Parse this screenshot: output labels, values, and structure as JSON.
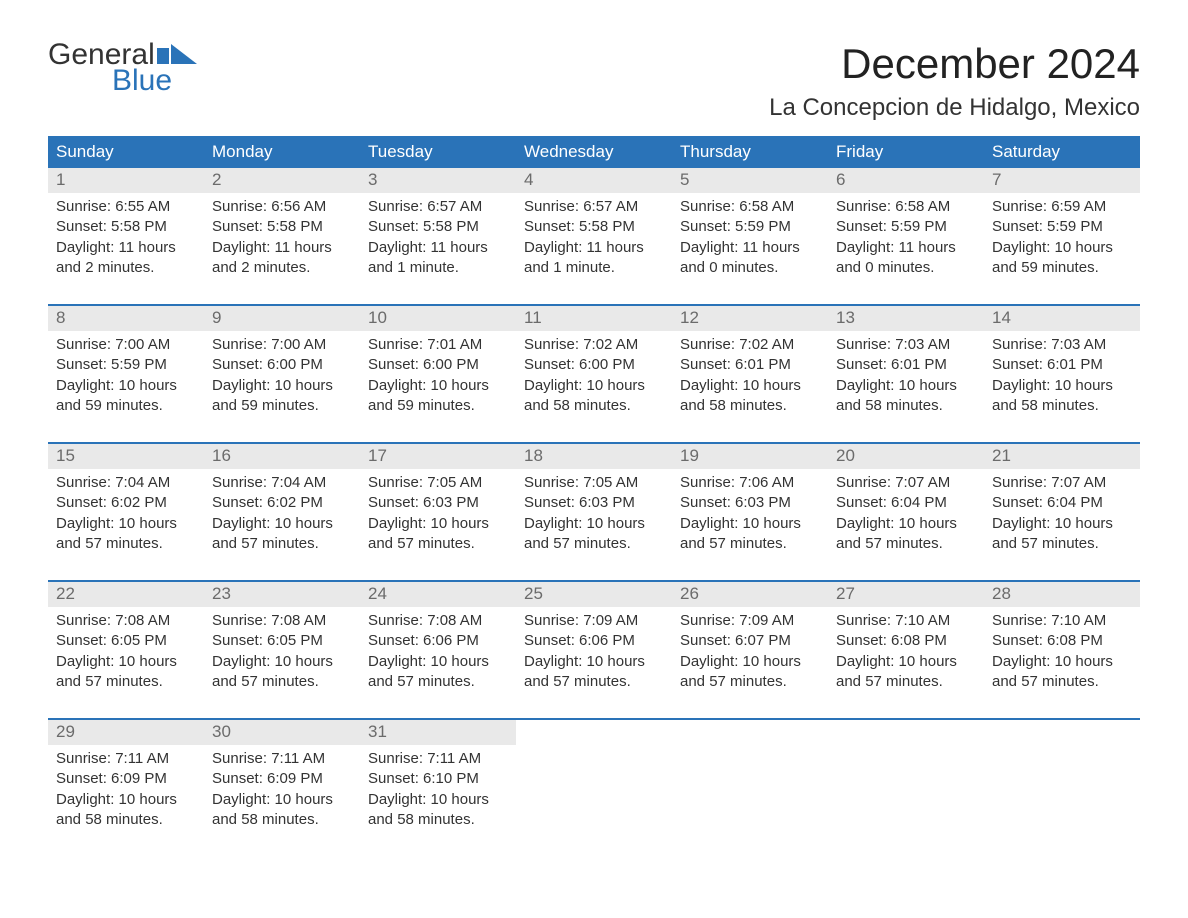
{
  "brand": {
    "word1": "General",
    "word2": "Blue",
    "word1_color": "#333333",
    "word2_color": "#2a73b8",
    "flag_color": "#2a73b8"
  },
  "title": "December 2024",
  "location": "La Concepcion de Hidalgo, Mexico",
  "colors": {
    "header_bg": "#2a73b8",
    "header_fg": "#ffffff",
    "daynum_bg": "#e9e9e9",
    "daynum_fg": "#6b6b6b",
    "week_border": "#2a73b8",
    "body_text": "#333333",
    "page_bg": "#ffffff"
  },
  "typography": {
    "title_fontsize": 42,
    "location_fontsize": 24,
    "weekday_fontsize": 17,
    "daynum_fontsize": 17,
    "body_fontsize": 15
  },
  "weekdays": [
    "Sunday",
    "Monday",
    "Tuesday",
    "Wednesday",
    "Thursday",
    "Friday",
    "Saturday"
  ],
  "weeks": [
    [
      {
        "n": "1",
        "sunrise": "Sunrise: 6:55 AM",
        "sunset": "Sunset: 5:58 PM",
        "dl1": "Daylight: 11 hours",
        "dl2": "and 2 minutes."
      },
      {
        "n": "2",
        "sunrise": "Sunrise: 6:56 AM",
        "sunset": "Sunset: 5:58 PM",
        "dl1": "Daylight: 11 hours",
        "dl2": "and 2 minutes."
      },
      {
        "n": "3",
        "sunrise": "Sunrise: 6:57 AM",
        "sunset": "Sunset: 5:58 PM",
        "dl1": "Daylight: 11 hours",
        "dl2": "and 1 minute."
      },
      {
        "n": "4",
        "sunrise": "Sunrise: 6:57 AM",
        "sunset": "Sunset: 5:58 PM",
        "dl1": "Daylight: 11 hours",
        "dl2": "and 1 minute."
      },
      {
        "n": "5",
        "sunrise": "Sunrise: 6:58 AM",
        "sunset": "Sunset: 5:59 PM",
        "dl1": "Daylight: 11 hours",
        "dl2": "and 0 minutes."
      },
      {
        "n": "6",
        "sunrise": "Sunrise: 6:58 AM",
        "sunset": "Sunset: 5:59 PM",
        "dl1": "Daylight: 11 hours",
        "dl2": "and 0 minutes."
      },
      {
        "n": "7",
        "sunrise": "Sunrise: 6:59 AM",
        "sunset": "Sunset: 5:59 PM",
        "dl1": "Daylight: 10 hours",
        "dl2": "and 59 minutes."
      }
    ],
    [
      {
        "n": "8",
        "sunrise": "Sunrise: 7:00 AM",
        "sunset": "Sunset: 5:59 PM",
        "dl1": "Daylight: 10 hours",
        "dl2": "and 59 minutes."
      },
      {
        "n": "9",
        "sunrise": "Sunrise: 7:00 AM",
        "sunset": "Sunset: 6:00 PM",
        "dl1": "Daylight: 10 hours",
        "dl2": "and 59 minutes."
      },
      {
        "n": "10",
        "sunrise": "Sunrise: 7:01 AM",
        "sunset": "Sunset: 6:00 PM",
        "dl1": "Daylight: 10 hours",
        "dl2": "and 59 minutes."
      },
      {
        "n": "11",
        "sunrise": "Sunrise: 7:02 AM",
        "sunset": "Sunset: 6:00 PM",
        "dl1": "Daylight: 10 hours",
        "dl2": "and 58 minutes."
      },
      {
        "n": "12",
        "sunrise": "Sunrise: 7:02 AM",
        "sunset": "Sunset: 6:01 PM",
        "dl1": "Daylight: 10 hours",
        "dl2": "and 58 minutes."
      },
      {
        "n": "13",
        "sunrise": "Sunrise: 7:03 AM",
        "sunset": "Sunset: 6:01 PM",
        "dl1": "Daylight: 10 hours",
        "dl2": "and 58 minutes."
      },
      {
        "n": "14",
        "sunrise": "Sunrise: 7:03 AM",
        "sunset": "Sunset: 6:01 PM",
        "dl1": "Daylight: 10 hours",
        "dl2": "and 58 minutes."
      }
    ],
    [
      {
        "n": "15",
        "sunrise": "Sunrise: 7:04 AM",
        "sunset": "Sunset: 6:02 PM",
        "dl1": "Daylight: 10 hours",
        "dl2": "and 57 minutes."
      },
      {
        "n": "16",
        "sunrise": "Sunrise: 7:04 AM",
        "sunset": "Sunset: 6:02 PM",
        "dl1": "Daylight: 10 hours",
        "dl2": "and 57 minutes."
      },
      {
        "n": "17",
        "sunrise": "Sunrise: 7:05 AM",
        "sunset": "Sunset: 6:03 PM",
        "dl1": "Daylight: 10 hours",
        "dl2": "and 57 minutes."
      },
      {
        "n": "18",
        "sunrise": "Sunrise: 7:05 AM",
        "sunset": "Sunset: 6:03 PM",
        "dl1": "Daylight: 10 hours",
        "dl2": "and 57 minutes."
      },
      {
        "n": "19",
        "sunrise": "Sunrise: 7:06 AM",
        "sunset": "Sunset: 6:03 PM",
        "dl1": "Daylight: 10 hours",
        "dl2": "and 57 minutes."
      },
      {
        "n": "20",
        "sunrise": "Sunrise: 7:07 AM",
        "sunset": "Sunset: 6:04 PM",
        "dl1": "Daylight: 10 hours",
        "dl2": "and 57 minutes."
      },
      {
        "n": "21",
        "sunrise": "Sunrise: 7:07 AM",
        "sunset": "Sunset: 6:04 PM",
        "dl1": "Daylight: 10 hours",
        "dl2": "and 57 minutes."
      }
    ],
    [
      {
        "n": "22",
        "sunrise": "Sunrise: 7:08 AM",
        "sunset": "Sunset: 6:05 PM",
        "dl1": "Daylight: 10 hours",
        "dl2": "and 57 minutes."
      },
      {
        "n": "23",
        "sunrise": "Sunrise: 7:08 AM",
        "sunset": "Sunset: 6:05 PM",
        "dl1": "Daylight: 10 hours",
        "dl2": "and 57 minutes."
      },
      {
        "n": "24",
        "sunrise": "Sunrise: 7:08 AM",
        "sunset": "Sunset: 6:06 PM",
        "dl1": "Daylight: 10 hours",
        "dl2": "and 57 minutes."
      },
      {
        "n": "25",
        "sunrise": "Sunrise: 7:09 AM",
        "sunset": "Sunset: 6:06 PM",
        "dl1": "Daylight: 10 hours",
        "dl2": "and 57 minutes."
      },
      {
        "n": "26",
        "sunrise": "Sunrise: 7:09 AM",
        "sunset": "Sunset: 6:07 PM",
        "dl1": "Daylight: 10 hours",
        "dl2": "and 57 minutes."
      },
      {
        "n": "27",
        "sunrise": "Sunrise: 7:10 AM",
        "sunset": "Sunset: 6:08 PM",
        "dl1": "Daylight: 10 hours",
        "dl2": "and 57 minutes."
      },
      {
        "n": "28",
        "sunrise": "Sunrise: 7:10 AM",
        "sunset": "Sunset: 6:08 PM",
        "dl1": "Daylight: 10 hours",
        "dl2": "and 57 minutes."
      }
    ],
    [
      {
        "n": "29",
        "sunrise": "Sunrise: 7:11 AM",
        "sunset": "Sunset: 6:09 PM",
        "dl1": "Daylight: 10 hours",
        "dl2": "and 58 minutes."
      },
      {
        "n": "30",
        "sunrise": "Sunrise: 7:11 AM",
        "sunset": "Sunset: 6:09 PM",
        "dl1": "Daylight: 10 hours",
        "dl2": "and 58 minutes."
      },
      {
        "n": "31",
        "sunrise": "Sunrise: 7:11 AM",
        "sunset": "Sunset: 6:10 PM",
        "dl1": "Daylight: 10 hours",
        "dl2": "and 58 minutes."
      },
      null,
      null,
      null,
      null
    ]
  ]
}
